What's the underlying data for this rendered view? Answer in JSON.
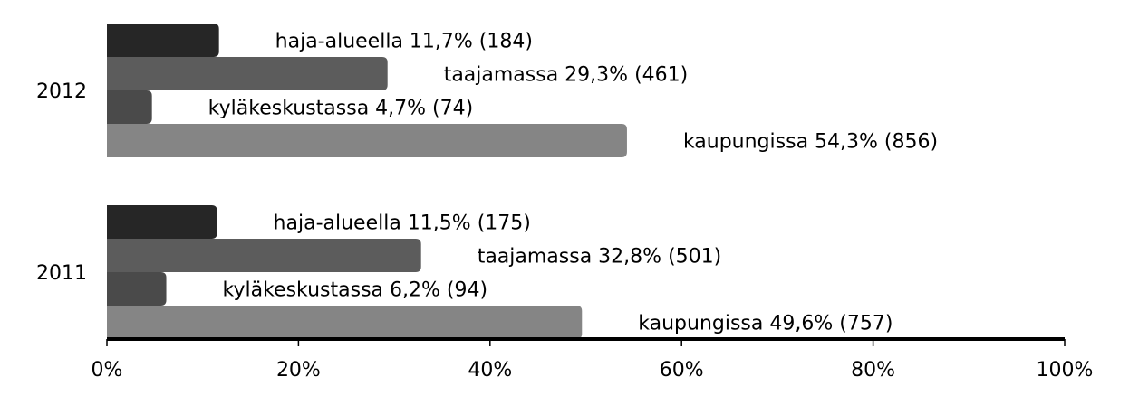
{
  "chart_data": {
    "type": "hbar",
    "categories": [
      "2012",
      "2011"
    ],
    "series": [
      {
        "color": "#262626",
        "values": [
          11.7,
          11.5
        ],
        "value_labels": [
          "haja-alueella 11,7% (184)",
          "haja-alueella 11,5% (175)"
        ]
      },
      {
        "color": "#5c5c5c",
        "values": [
          29.3,
          32.8
        ],
        "value_labels": [
          "taajamassa 29,3% (461)",
          "taajamassa 32,8% (501)"
        ]
      },
      {
        "color": "#4a4a4a",
        "values": [
          4.7,
          6.2
        ],
        "value_labels": [
          "kyläkeskustassa 4,7% (74)",
          "kyläkeskustassa 6,2% (94)"
        ]
      },
      {
        "color": "#858585",
        "values": [
          54.3,
          49.6
        ],
        "value_labels": [
          "kaupungissa 54,3% (856)",
          "kaupungissa 49,6% (757)"
        ]
      }
    ],
    "xlim": [
      0,
      100
    ],
    "xticks": [
      {
        "value": 0,
        "label": "0%"
      },
      {
        "value": 20,
        "label": "20%"
      },
      {
        "value": 40,
        "label": "40%"
      },
      {
        "value": 60,
        "label": "60%"
      },
      {
        "value": 80,
        "label": "80%"
      },
      {
        "value": 100,
        "label": "100%"
      }
    ]
  }
}
